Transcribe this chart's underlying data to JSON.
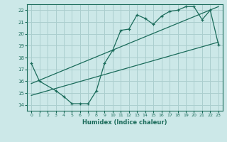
{
  "xlabel": "Humidex (Indice chaleur)",
  "ylabel": "",
  "bg_color": "#cce8e8",
  "grid_color": "#aacece",
  "line_color": "#1a6b5a",
  "xlim": [
    -0.5,
    23.5
  ],
  "ylim": [
    13.5,
    22.5
  ],
  "xticks": [
    0,
    1,
    2,
    3,
    4,
    5,
    6,
    7,
    8,
    9,
    10,
    11,
    12,
    13,
    14,
    15,
    16,
    17,
    18,
    19,
    20,
    21,
    22,
    23
  ],
  "yticks": [
    14,
    15,
    16,
    17,
    18,
    19,
    20,
    21,
    22
  ],
  "curve1_x": [
    0,
    1,
    3,
    4,
    5,
    6,
    7,
    8,
    9,
    10,
    11,
    12,
    13,
    14,
    15,
    16,
    17,
    18,
    19,
    20,
    21,
    22,
    23
  ],
  "curve1_y": [
    17.5,
    16.0,
    15.2,
    14.7,
    14.1,
    14.1,
    14.1,
    15.2,
    17.5,
    18.6,
    20.3,
    20.4,
    21.6,
    21.3,
    20.8,
    21.5,
    21.9,
    22.0,
    22.3,
    22.3,
    21.2,
    22.0,
    19.1
  ],
  "curve2_x": [
    0,
    23
  ],
  "curve2_y": [
    14.8,
    19.3
  ],
  "curve3_x": [
    0,
    23
  ],
  "curve3_y": [
    15.8,
    22.3
  ]
}
